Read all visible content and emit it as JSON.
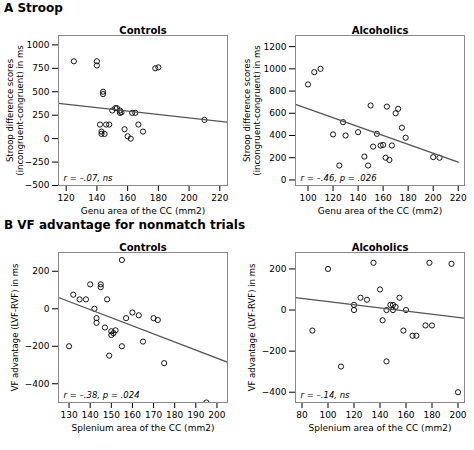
{
  "chart_data": [
    {
      "type": "scatter",
      "subtitle": "A  Stroop",
      "title": "Controls",
      "xlabel": "Genu area of the CC (mm2)",
      "ylabel": "Stroop difference scores\n(incongruent-congruent) in ms",
      "xlim": [
        115,
        225
      ],
      "ylim": [
        -500,
        1100
      ],
      "xticks": [
        120,
        140,
        160,
        180,
        200,
        220
      ],
      "yticks": [
        -500,
        -250,
        0,
        250,
        500,
        750,
        1000
      ],
      "annotation": "r = –.07, ns",
      "grid": false,
      "series": [
        {
          "type": "scatter",
          "marker": "circle",
          "color": "#000000",
          "x": [
            125,
            140,
            140,
            142,
            143,
            143,
            144,
            144,
            145,
            146,
            148,
            150,
            152,
            153,
            155,
            155,
            156,
            158,
            160,
            162,
            163,
            165,
            167,
            170,
            178,
            180,
            210
          ],
          "values": [
            825,
            780,
            825,
            150,
            50,
            75,
            475,
            500,
            50,
            150,
            150,
            300,
            325,
            325,
            275,
            300,
            280,
            100,
            25,
            0,
            275,
            275,
            150,
            75,
            750,
            760,
            200
          ]
        },
        {
          "type": "line",
          "color": "#555555",
          "x": [
            115,
            225
          ],
          "values": [
            375,
            175
          ]
        }
      ]
    },
    {
      "type": "scatter",
      "title": "Alcoholics",
      "xlabel": "Genu area of the CC (mm2)",
      "ylabel": "Stroop difference scores\n(incongruent-congruent) in ms",
      "xlim": [
        90,
        225
      ],
      "ylim": [
        -50,
        1300
      ],
      "xticks": [
        100,
        120,
        140,
        160,
        180,
        200,
        220
      ],
      "yticks": [
        0,
        200,
        400,
        600,
        800,
        1000,
        1200
      ],
      "annotation": "r = –.46, p = .026",
      "grid": false,
      "series": [
        {
          "type": "scatter",
          "marker": "circle",
          "color": "#000000",
          "x": [
            100,
            105,
            110,
            120,
            125,
            128,
            130,
            140,
            145,
            148,
            150,
            152,
            155,
            158,
            160,
            162,
            163,
            165,
            167,
            170,
            172,
            175,
            178,
            200,
            205
          ],
          "values": [
            860,
            970,
            1000,
            410,
            130,
            520,
            400,
            430,
            210,
            130,
            670,
            300,
            415,
            310,
            315,
            200,
            660,
            180,
            310,
            600,
            640,
            470,
            380,
            205,
            200
          ]
        },
        {
          "type": "line",
          "color": "#555555",
          "x": [
            90,
            220
          ],
          "values": [
            680,
            160
          ]
        }
      ]
    },
    {
      "type": "scatter",
      "subtitle": "B  VF advantage for nonmatch trials",
      "title": "Controls",
      "xlabel": "Splenium area of the CC (mm2)",
      "ylabel": "VF advantage (LVF-RVF) in ms",
      "xlim": [
        125,
        205
      ],
      "ylim": [
        -500,
        300
      ],
      "xticks": [
        130,
        140,
        150,
        160,
        170,
        180,
        190,
        200
      ],
      "yticks": [
        -400,
        -200,
        0,
        200
      ],
      "annotation": "r = –.38, p = .024",
      "grid": false,
      "series": [
        {
          "type": "scatter",
          "marker": "circle",
          "color": "#000000",
          "x": [
            130,
            132,
            135,
            138,
            140,
            142,
            143,
            143,
            145,
            145,
            147,
            148,
            149,
            150,
            150,
            151,
            152,
            155,
            155,
            157,
            160,
            163,
            165,
            170,
            172,
            175,
            195
          ],
          "values": [
            -200,
            75,
            50,
            50,
            130,
            0,
            -50,
            -75,
            130,
            115,
            -100,
            50,
            -250,
            -140,
            -120,
            -130,
            -115,
            -200,
            260,
            -50,
            -20,
            -35,
            -175,
            -50,
            -60,
            -290,
            -500
          ]
        },
        {
          "type": "line",
          "color": "#555555",
          "x": [
            125,
            205
          ],
          "values": [
            60,
            -285
          ]
        }
      ]
    },
    {
      "type": "scatter",
      "title": "Alcoholics",
      "xlabel": "Splenium area of the CC (mm2)",
      "ylabel": "VF advantage (LVF-RVF) in ms",
      "xlim": [
        75,
        205
      ],
      "ylim": [
        -450,
        280
      ],
      "xticks": [
        80,
        100,
        120,
        140,
        160,
        180,
        200
      ],
      "yticks": [
        -400,
        -200,
        0,
        200
      ],
      "annotation": "r = –.14, ns",
      "grid": false,
      "series": [
        {
          "type": "scatter",
          "marker": "circle",
          "color": "#000000",
          "x": [
            88,
            100,
            110,
            120,
            120,
            125,
            130,
            135,
            140,
            142,
            145,
            145,
            148,
            150,
            150,
            152,
            155,
            158,
            160,
            165,
            168,
            175,
            178,
            180,
            195,
            200
          ],
          "values": [
            -100,
            200,
            -275,
            0,
            25,
            60,
            50,
            230,
            100,
            -50,
            -250,
            0,
            25,
            25,
            0,
            15,
            60,
            -100,
            0,
            -125,
            -125,
            -75,
            230,
            -75,
            225,
            -400
          ]
        },
        {
          "type": "line",
          "color": "#555555",
          "x": [
            75,
            205
          ],
          "values": [
            60,
            -40
          ]
        }
      ]
    }
  ]
}
